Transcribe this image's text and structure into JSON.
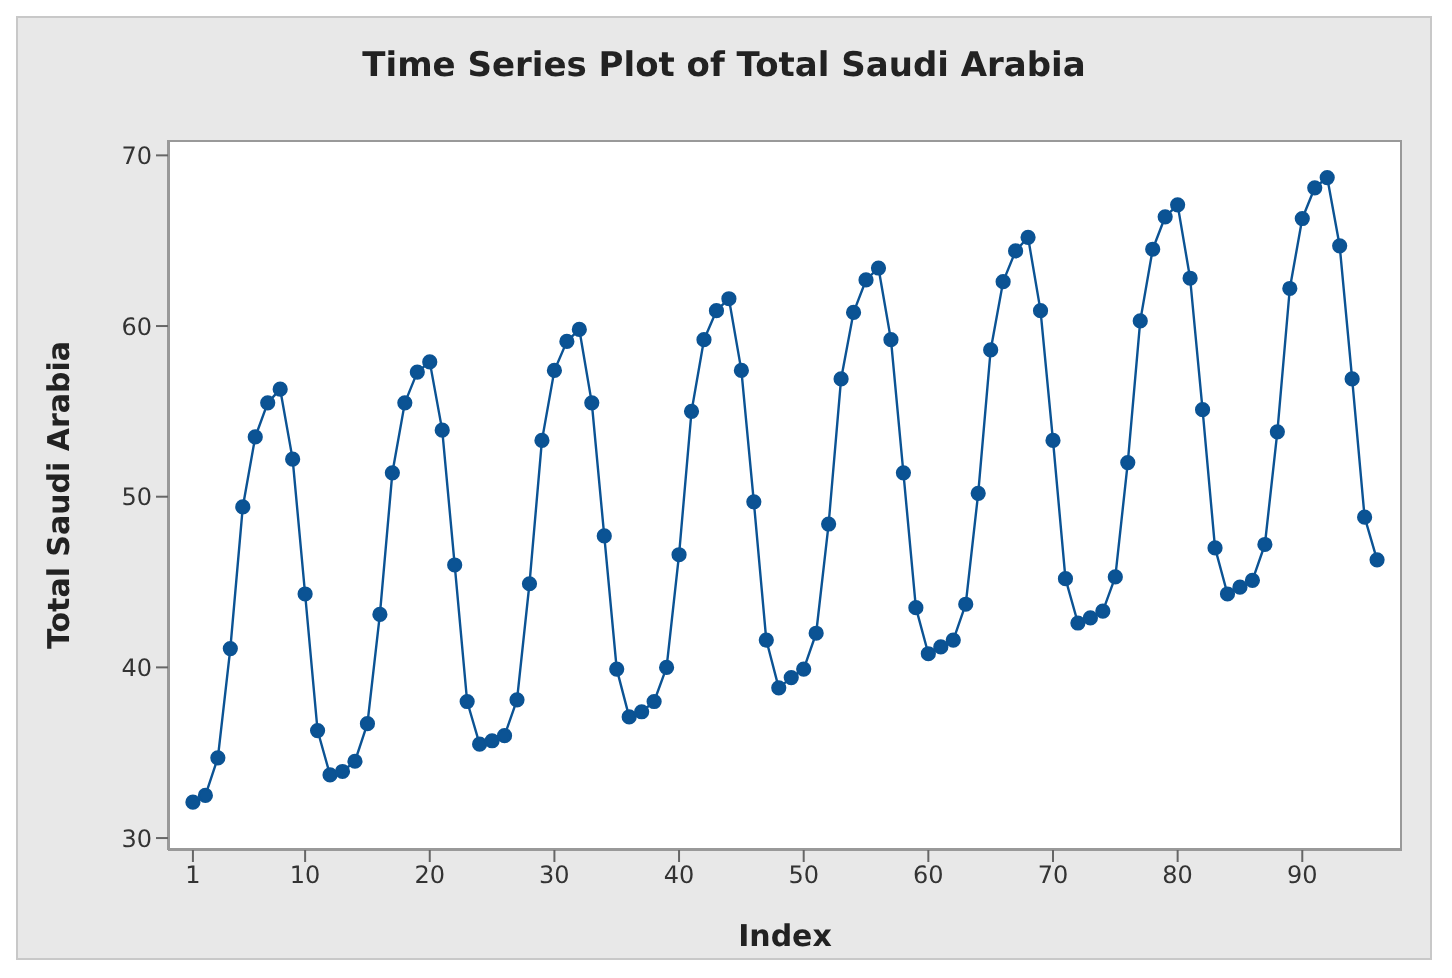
{
  "chart_data": {
    "type": "line",
    "title": "Time Series Plot of Total Saudi Arabia",
    "xlabel": "Index",
    "ylabel": "Total Saudi Arabia",
    "x": [
      1,
      2,
      3,
      4,
      5,
      6,
      7,
      8,
      9,
      10,
      11,
      12,
      13,
      14,
      15,
      16,
      17,
      18,
      19,
      20,
      21,
      22,
      23,
      24,
      25,
      26,
      27,
      28,
      29,
      30,
      31,
      32,
      33,
      34,
      35,
      36,
      37,
      38,
      39,
      40,
      41,
      42,
      43,
      44,
      45,
      46,
      47,
      48,
      49,
      50,
      51,
      52,
      53,
      54,
      55,
      56,
      57,
      58,
      59,
      60,
      61,
      62,
      63,
      64,
      65,
      66,
      67,
      68,
      69,
      70,
      71,
      72,
      73,
      74,
      75,
      76,
      77,
      78,
      79,
      80,
      81,
      82,
      83,
      84,
      85,
      86,
      87,
      88,
      89,
      90,
      91,
      92,
      93,
      94,
      95,
      96
    ],
    "series": [
      {
        "color": "#0b5394",
        "values": [
          32.1,
          32.5,
          34.7,
          41.1,
          49.4,
          53.5,
          55.5,
          56.3,
          52.2,
          44.3,
          36.3,
          33.7,
          33.9,
          34.5,
          36.7,
          43.1,
          51.4,
          55.5,
          57.3,
          57.9,
          53.9,
          46.0,
          38.0,
          35.5,
          35.7,
          36.0,
          38.1,
          44.9,
          53.3,
          57.4,
          59.1,
          59.8,
          55.5,
          47.7,
          39.9,
          37.1,
          37.4,
          38.0,
          40.0,
          46.6,
          55.0,
          59.2,
          60.9,
          61.6,
          57.4,
          49.7,
          41.6,
          38.8,
          39.4,
          39.9,
          42.0,
          48.4,
          56.9,
          60.8,
          62.7,
          63.4,
          59.2,
          51.4,
          43.5,
          40.8,
          41.2,
          41.6,
          43.7,
          50.2,
          58.6,
          62.6,
          64.4,
          65.2,
          60.9,
          53.3,
          45.2,
          42.6,
          42.9,
          43.3,
          45.3,
          52.0,
          60.3,
          64.5,
          66.4,
          67.1,
          62.8,
          55.1,
          47.0,
          44.3,
          44.7,
          45.1,
          47.2,
          53.8,
          62.2,
          66.3,
          68.1,
          68.7,
          64.7,
          56.9,
          48.8,
          46.3
        ]
      }
    ],
    "xlim": [
      -1,
      98
    ],
    "xticks": [
      1,
      10,
      20,
      30,
      40,
      50,
      60,
      70,
      80,
      90
    ],
    "ylim": [
      29.3,
      70.9
    ],
    "yticks": [
      30,
      40,
      50,
      60,
      70
    ],
    "grid": false,
    "legend": false,
    "marker": "circle",
    "line_style": "solid"
  }
}
